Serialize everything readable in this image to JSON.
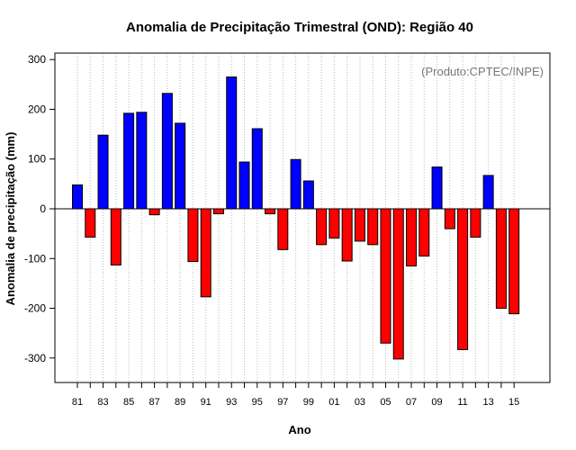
{
  "chart_data": {
    "type": "bar",
    "title": "Anomalia de Precipitação Trimestral (OND): Região 40",
    "xlabel": "Ano",
    "ylabel": "Anomalia de precipitação (mm)",
    "credit": "(Produto:CPTEC/INPE)",
    "ylim": [
      -355,
      320
    ],
    "yticks": [
      -300,
      -200,
      -100,
      0,
      100,
      200,
      300
    ],
    "grid": "vertical-dotted",
    "colors": {
      "positive": "#0000ff",
      "negative": "#ff0000",
      "grid": "#bbbbbb",
      "frame": "#000000"
    },
    "categories": [
      "1981",
      "1982",
      "1983",
      "1984",
      "1985",
      "1986",
      "1987",
      "1988",
      "1989",
      "1990",
      "1991",
      "1992",
      "1993",
      "1994",
      "1995",
      "1996",
      "1997",
      "1998",
      "1999",
      "2000",
      "2001",
      "2002",
      "2003",
      "2004",
      "2005",
      "2006",
      "2007",
      "2008",
      "2009",
      "2010",
      "2011",
      "2012",
      "2013",
      "2014",
      "2015"
    ],
    "values": [
      48,
      -57,
      148,
      -113,
      192,
      194,
      -12,
      232,
      172,
      -106,
      -177,
      -10,
      265,
      94,
      161,
      -10,
      -82,
      99,
      56,
      -72,
      -59,
      -105,
      -65,
      -72,
      -270,
      -302,
      -115,
      -95,
      84,
      -40,
      -283,
      -57,
      67,
      -200,
      -211
    ],
    "xtick_labels": [
      "81",
      "83",
      "85",
      "87",
      "89",
      "91",
      "93",
      "95",
      "97",
      "99",
      "01",
      "03",
      "05",
      "07",
      "09",
      "11",
      "13",
      "15"
    ]
  }
}
